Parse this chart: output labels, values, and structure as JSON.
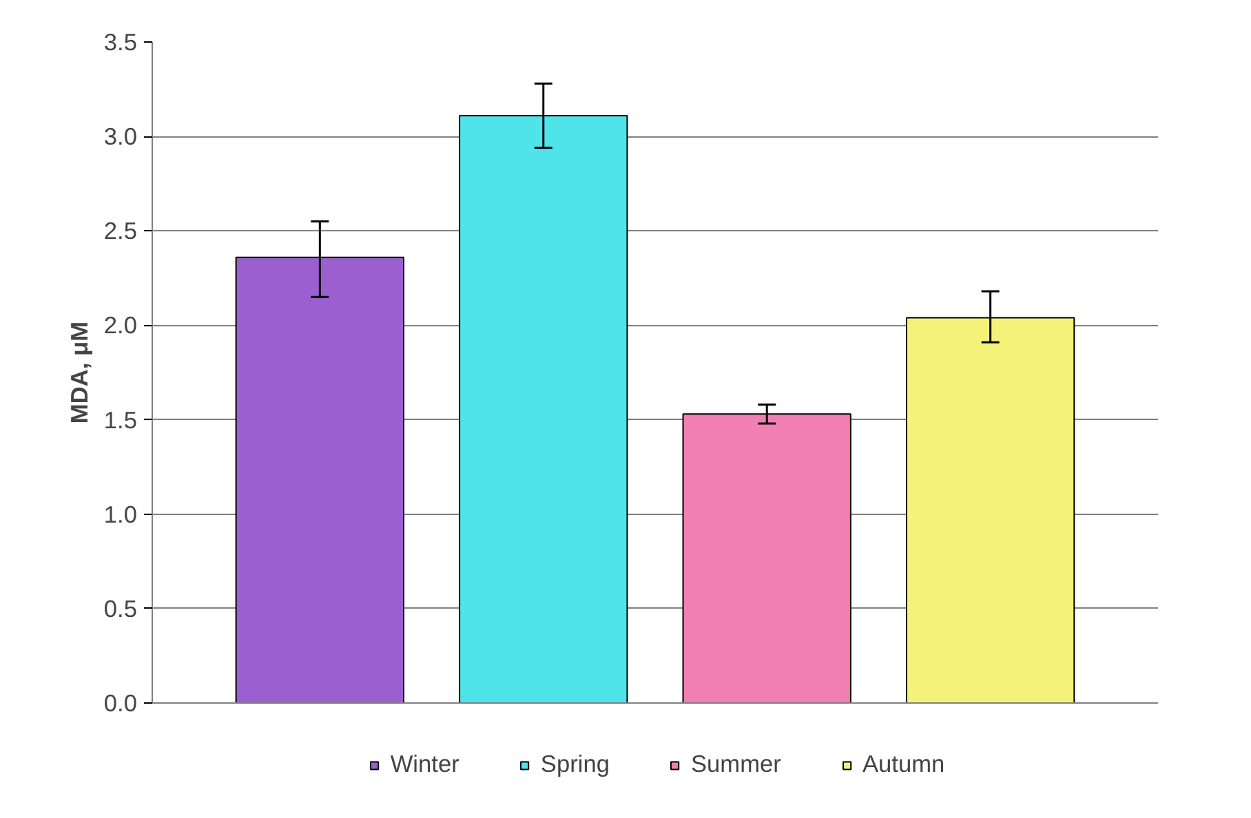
{
  "chart_data": {
    "type": "bar",
    "ylabel": "MDA, μM",
    "categories": [
      null,
      null,
      null,
      null
    ],
    "series": [
      {
        "name": "Winter",
        "color": "#9b5fd0",
        "values": [
          2.36,
          null,
          null,
          null
        ],
        "errors": [
          [
            2.15,
            2.55
          ],
          null,
          null,
          null
        ]
      },
      {
        "name": "Spring",
        "color": "#4fe3ea",
        "values": [
          null,
          3.11,
          null,
          null
        ],
        "errors": [
          null,
          [
            2.94,
            3.28
          ],
          null,
          null
        ]
      },
      {
        "name": "Summer",
        "color": "#f27fb4",
        "values": [
          null,
          null,
          1.53,
          null
        ],
        "errors": [
          null,
          null,
          [
            1.48,
            1.58
          ],
          null
        ]
      },
      {
        "name": "Autumn",
        "color": "#f5f27a",
        "values": [
          null,
          null,
          null,
          2.04
        ],
        "errors": [
          null,
          null,
          null,
          [
            1.91,
            2.18
          ]
        ]
      }
    ],
    "ylim": [
      0,
      3.5
    ],
    "yticks": [
      {
        "value": 0,
        "label": "0.0"
      },
      {
        "value": 0.5,
        "label": "0.5"
      },
      {
        "value": 1,
        "label": "1.0"
      },
      {
        "value": 1.5,
        "label": "1.5"
      },
      {
        "value": 2,
        "label": "2.0"
      },
      {
        "value": 2.5,
        "label": "2.5"
      },
      {
        "value": 3,
        "label": "3.0"
      },
      {
        "value": 3.5,
        "label": "3.5"
      }
    ],
    "grid": "y",
    "legend": "bottom",
    "tick_labels": "y"
  }
}
